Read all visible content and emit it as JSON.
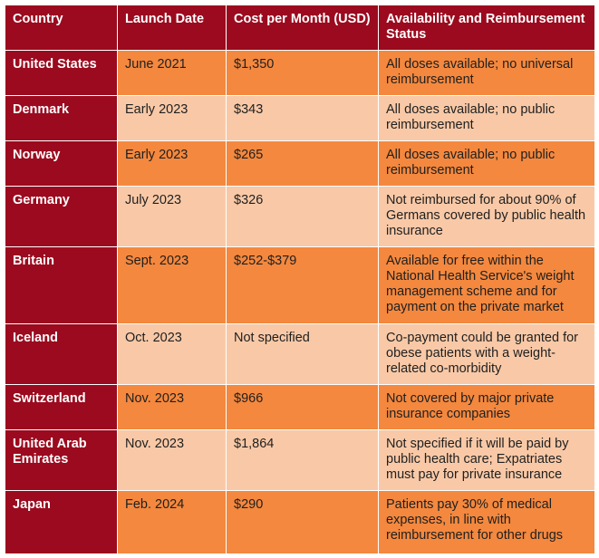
{
  "headers": [
    "Country",
    "Launch Date",
    "Cost per Month (USD)",
    "Availability and Reimbursement Status"
  ],
  "rows": [
    {
      "country": "United States",
      "launch": "June 2021",
      "cost": "$1,350",
      "status": "All doses available; no universal reimbursement"
    },
    {
      "country": "Denmark",
      "launch": "Early 2023",
      "cost": "$343",
      "status": "All doses available; no public reimbursement"
    },
    {
      "country": "Norway",
      "launch": "Early 2023",
      "cost": "$265",
      "status": "All doses available; no public reimbursement"
    },
    {
      "country": "Germany",
      "launch": "July 2023",
      "cost": "$326",
      "status": "Not reimbursed for about 90% of Germans covered by public health insurance"
    },
    {
      "country": "Britain",
      "launch": "Sept. 2023",
      "cost": "$252-$379",
      "status": "Available for free within the National Health Service's weight management scheme and for payment on the private market"
    },
    {
      "country": "Iceland",
      "launch": "Oct. 2023",
      "cost": "Not specified",
      "status": "Co-payment could be granted for obese patients with a weight-related co-morbidity"
    },
    {
      "country": "Switzerland",
      "launch": "Nov. 2023",
      "cost": "$966",
      "status": "Not covered by major private insurance companies"
    },
    {
      "country": "United Arab Emirates",
      "launch": "Nov. 2023",
      "cost": "$1,864",
      "status": "Not specified if it will be paid by public health care; Expatriates must pay for private insurance"
    },
    {
      "country": "Japan",
      "launch": "Feb. 2024",
      "cost": "$290",
      "status": "Patients pay 30% of medical expenses, in line with reimbursement for other drugs"
    }
  ]
}
